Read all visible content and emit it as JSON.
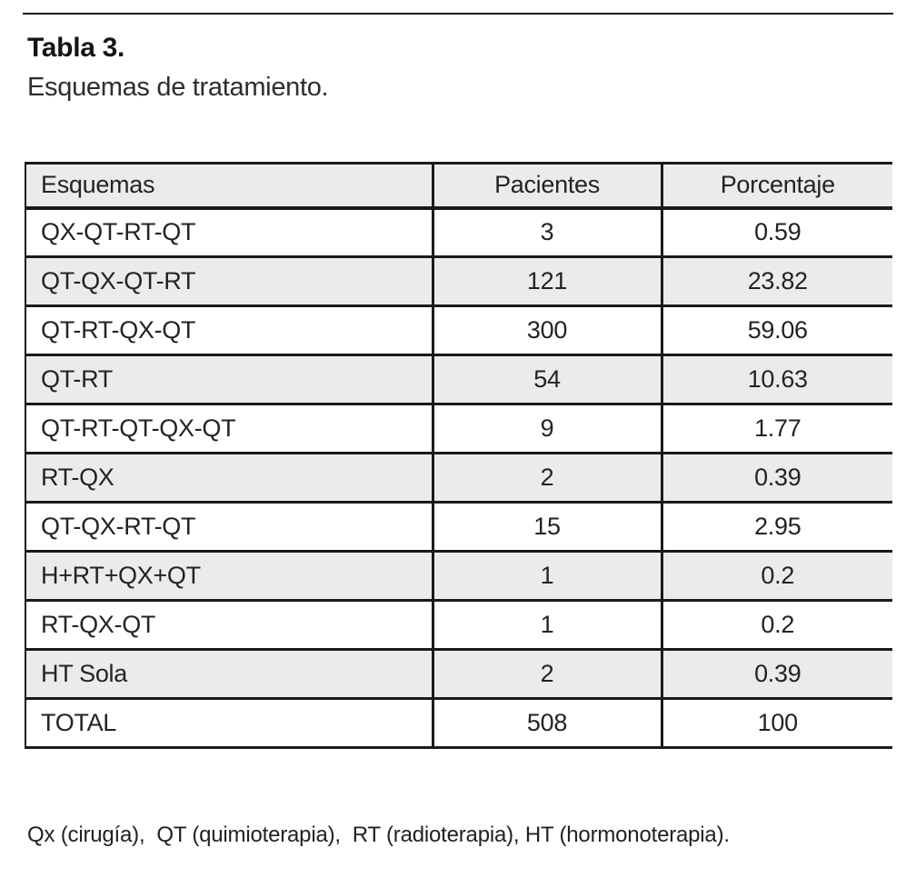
{
  "page": {
    "title": "Tabla 3.",
    "subtitle": "Esquemas de tratamiento.",
    "footnote": "Qx (cirugía),  QT (quimioterapia),  RT (radioterapia), HT (hormonoterapia)."
  },
  "table": {
    "columns": [
      "Esquemas",
      "Pacientes",
      "Porcentaje"
    ],
    "rows": [
      {
        "esquema": "QX-QT-RT-QT",
        "pacientes": "3",
        "porcentaje": "0.59"
      },
      {
        "esquema": "QT-QX-QT-RT",
        "pacientes": "121",
        "porcentaje": "23.82"
      },
      {
        "esquema": "QT-RT-QX-QT",
        "pacientes": "300",
        "porcentaje": "59.06"
      },
      {
        "esquema": "QT-RT",
        "pacientes": "54",
        "porcentaje": "10.63"
      },
      {
        "esquema": "QT-RT-QT-QX-QT",
        "pacientes": "9",
        "porcentaje": "1.77"
      },
      {
        "esquema": "RT-QX",
        "pacientes": "2",
        "porcentaje": "0.39"
      },
      {
        "esquema": "QT-QX-RT-QT",
        "pacientes": "15",
        "porcentaje": "2.95"
      },
      {
        "esquema": "H+RT+QX+QT",
        "pacientes": "1",
        "porcentaje": "0.2"
      },
      {
        "esquema": "RT-QX-QT",
        "pacientes": "1",
        "porcentaje": "0.2"
      },
      {
        "esquema": "HT Sola",
        "pacientes": "2",
        "porcentaje": "0.39"
      },
      {
        "esquema": "TOTAL",
        "pacientes": "508",
        "porcentaje": "100"
      }
    ]
  },
  "colors": {
    "row_alt_background": "#ebecea",
    "rule": "#1a1a1a"
  }
}
